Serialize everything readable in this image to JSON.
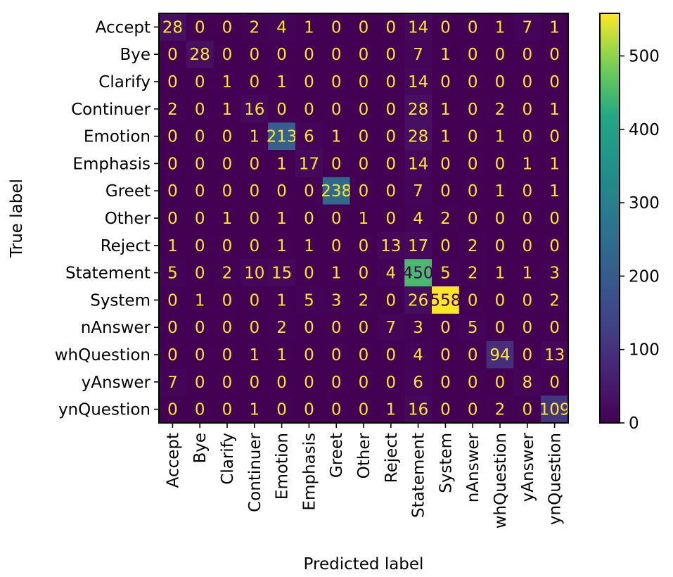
{
  "chart_data": {
    "type": "heatmap",
    "title": "",
    "xlabel": "Predicted label",
    "ylabel": "True label",
    "labels": [
      "Accept",
      "Bye",
      "Clarify",
      "Continuer",
      "Emotion",
      "Emphasis",
      "Greet",
      "Other",
      "Reject",
      "Statement",
      "System",
      "nAnswer",
      "whQuestion",
      "yAnswer",
      "ynQuestion"
    ],
    "matrix": [
      [
        28,
        0,
        0,
        2,
        4,
        1,
        0,
        0,
        0,
        14,
        0,
        0,
        1,
        7,
        1
      ],
      [
        0,
        28,
        0,
        0,
        0,
        0,
        0,
        0,
        0,
        7,
        1,
        0,
        0,
        0,
        0
      ],
      [
        0,
        0,
        1,
        0,
        1,
        0,
        0,
        0,
        0,
        14,
        0,
        0,
        0,
        0,
        0
      ],
      [
        2,
        0,
        1,
        16,
        0,
        0,
        0,
        0,
        0,
        28,
        1,
        0,
        2,
        0,
        1
      ],
      [
        0,
        0,
        0,
        1,
        213,
        6,
        1,
        0,
        0,
        28,
        1,
        0,
        1,
        0,
        0
      ],
      [
        0,
        0,
        0,
        0,
        1,
        17,
        0,
        0,
        0,
        14,
        0,
        0,
        0,
        1,
        1
      ],
      [
        0,
        0,
        0,
        0,
        0,
        0,
        238,
        0,
        0,
        7,
        0,
        0,
        1,
        0,
        1
      ],
      [
        0,
        0,
        1,
        0,
        1,
        0,
        0,
        1,
        0,
        4,
        2,
        0,
        0,
        0,
        0
      ],
      [
        1,
        0,
        0,
        0,
        1,
        1,
        0,
        0,
        13,
        17,
        0,
        2,
        0,
        0,
        0
      ],
      [
        5,
        0,
        2,
        10,
        15,
        0,
        1,
        0,
        4,
        450,
        5,
        2,
        1,
        1,
        3
      ],
      [
        0,
        1,
        0,
        0,
        1,
        5,
        3,
        2,
        0,
        26,
        558,
        0,
        0,
        0,
        2
      ],
      [
        0,
        0,
        0,
        0,
        2,
        0,
        0,
        0,
        7,
        3,
        0,
        5,
        0,
        0,
        0
      ],
      [
        0,
        0,
        0,
        1,
        1,
        0,
        0,
        0,
        0,
        4,
        0,
        0,
        94,
        0,
        13
      ],
      [
        7,
        0,
        0,
        0,
        0,
        0,
        0,
        0,
        0,
        6,
        0,
        0,
        0,
        8,
        0
      ],
      [
        0,
        0,
        0,
        1,
        0,
        0,
        0,
        0,
        1,
        16,
        0,
        0,
        2,
        0,
        109
      ]
    ],
    "colorbar": {
      "colormap": "viridis",
      "range": [
        0,
        558
      ],
      "ticks": [
        0,
        100,
        200,
        300,
        400,
        500
      ]
    },
    "grid": false,
    "legend": "none"
  }
}
